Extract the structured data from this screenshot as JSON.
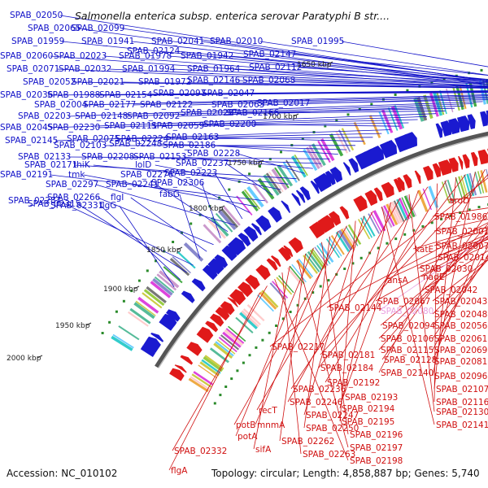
{
  "title": "Salmonella enterica subsp. enterica serovar Paratyphi B str....",
  "footer": {
    "accession": "Accession: NC_010102",
    "stats": "Topology: circular; Length: 4,858,887 bp; Genes: 5,740"
  },
  "ticks": [
    "1650 kbp",
    "1700 kbp",
    "1750 kbp",
    "1800 kbp",
    "1850 kbp",
    "1900 kbp",
    "1950 kbp",
    "2000 kbp"
  ],
  "colors": {
    "forward_label": "#1010c8",
    "reverse_label": "#d01010",
    "highlight_label": "#e9a0e0",
    "forward_cds": "#1a1ad0",
    "reverse_cds": "#e01a1a",
    "backbone": "#555555"
  },
  "forward_labels": [
    "SPAB_02050",
    "SPAB_02065",
    "SPAB_02099",
    "SPAB_02041",
    "SPAB_02010",
    "SPAB_01995",
    "SPAB_01959",
    "SPAB_01941",
    "SPAB_02124",
    "SPAB_02060",
    "SPAB_02023",
    "SPAB_01978",
    "SPAB_01942",
    "SPAB_02147",
    "SPAB_02071",
    "SPAB_02032",
    "SPAB_01994",
    "SPAB_01964",
    "SPAB_02112",
    "SPAB_02052",
    "SPAB_02021",
    "SPAB_01972",
    "SPAB_02146",
    "SPAB_02068",
    "SPAB_02036",
    "SPAB_01988",
    "SPAB_02154",
    "SPAB_02097",
    "SPAB_02047",
    "SPAB_02004",
    "SPAB_02177",
    "SPAB_02122",
    "SPAB_02063",
    "SPAB_02017",
    "SPAB_02203",
    "SPAB_02148",
    "SPAB_02092",
    "SPAB_02028",
    "SPAB_02166",
    "SPAB_02045",
    "SPAB_02230",
    "SPAB_02111",
    "SPAB_02059",
    "SPAB_02200",
    "SPAB_02145",
    "SPAB_02075",
    "SPAB_02224",
    "SPAB_02163",
    "SPAB_02103",
    "SPAB_02248",
    "SPAB_02186",
    "SPAB_02133",
    "SPAB_02208",
    "SPAB_02153",
    "SPAB_02228",
    "SPAB_02171",
    "thiK",
    "lolD",
    "SPAB_02237",
    "SPAB_02191",
    "tmk",
    "SPAB_02276",
    "SPAB_02223",
    "SPAB_02297",
    "SPAB_02241",
    "SPAB_02306",
    "SPAB_02266",
    "flgI",
    "fabG",
    "SPAB_02287",
    "SPAB_02315",
    "SPAB_02331",
    "flgG"
  ],
  "reverse_labels": [
    "aroD",
    "SPAB_01986",
    "SPAB_02001",
    "SPAB_02007",
    "katE",
    "SPAB_02014",
    "SPAB_02030",
    "nadE",
    "ansA",
    "SPAB_02042",
    "SPAB_02067",
    "SPAB_02043",
    "SPAB_02144",
    "SPAB_02080",
    "SPAB_02048",
    "SPAB_02094",
    "SPAB_02056",
    "SPAB_02106",
    "SPAB_02061",
    "SPAB_02115",
    "SPAB_02069",
    "SPAB_02128",
    "SPAB_02081",
    "SPAB_02217",
    "SPAB_02181",
    "SPAB_02140",
    "SPAB_02096",
    "SPAB_02184",
    "SPAB_02107",
    "SPAB_02192",
    "SPAB_02116",
    "SPAB_02236",
    "SPAB_02193",
    "SPAB_02130",
    "SPAB_02246",
    "SPAB_02194",
    "SPAB_02141",
    "recT",
    "SPAB_02247",
    "SPAB_02195",
    "potB",
    "mnmA",
    "SPAB_02250",
    "SPAB_02196",
    "potA",
    "SPAB_02262",
    "SPAB_02197",
    "sifA",
    "SPAB_02263",
    "SPAB_02198",
    "SPAB_02332",
    "flgA"
  ]
}
